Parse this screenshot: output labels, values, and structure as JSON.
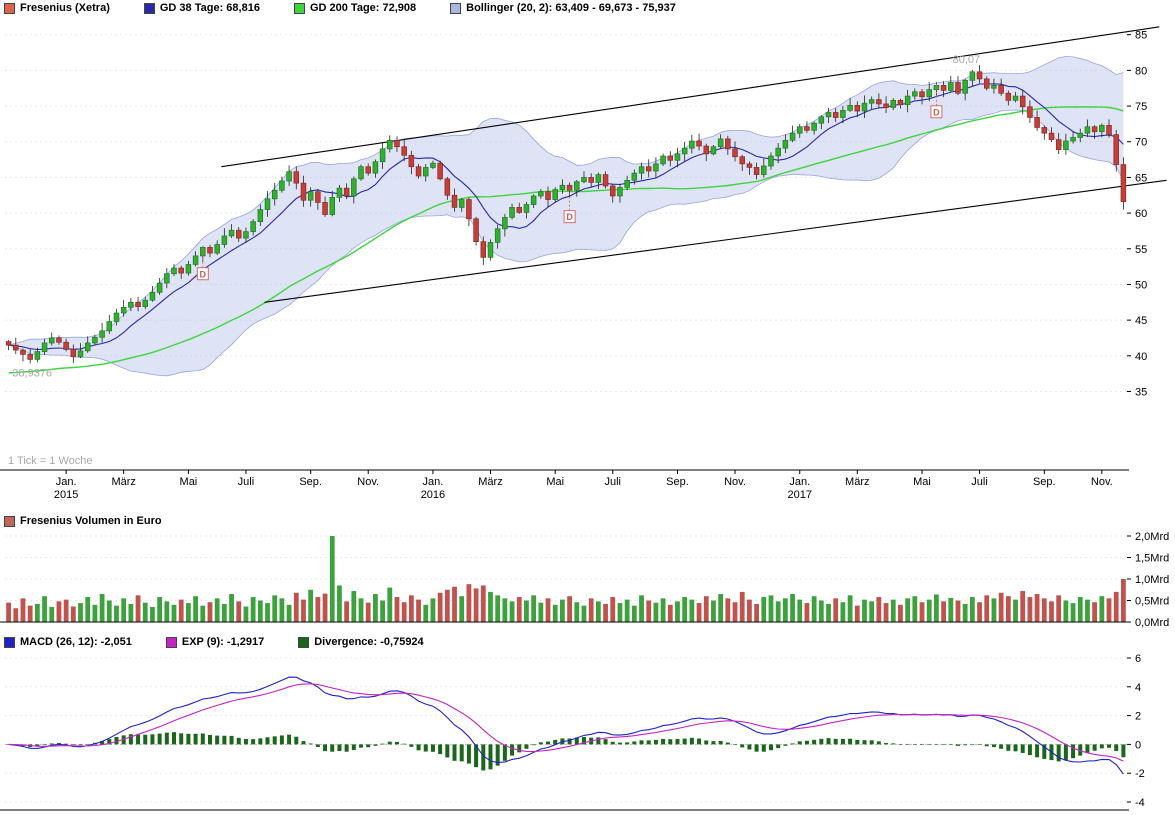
{
  "colors": {
    "up": "#33ae33",
    "up_border": "#1d7a1d",
    "down": "#c2403a",
    "down_border": "#8e2722",
    "gd38": "#2a2aa8",
    "gd200": "#3fd43f",
    "bollinger_fill": "rgba(168,182,228,0.38)",
    "bollinger_edge": "#96a5da",
    "swatch_bollinger": "#a8b6e4",
    "channel": "#000000",
    "volume_up": "#3da23d",
    "volume_down": "#c0534d",
    "macd": "#2121c8",
    "exp": "#c424c4",
    "divergence": "#1a661a",
    "marker": "#cc6059",
    "annotation": "#a8a8a8",
    "swatch_title": "#e2604e",
    "swatch_volume": "#c4655c",
    "axis": "#000000",
    "grid": "#e8e8e8"
  },
  "legend_main": {
    "title": "Fresenius (Xetra)",
    "gd38": "GD 38 Tage: 68,816",
    "gd200": "GD 200 Tage: 72,908",
    "bollinger": "Bollinger (20, 2): 63,409 - 69,673 - 75,937"
  },
  "legend_volume": {
    "label": "Fresenius Volumen in Euro"
  },
  "legend_macd": {
    "macd": "MACD (26, 12): -2,051",
    "exp": "EXP (9): -1,2917",
    "divergence": "Divergence: -0,75924"
  },
  "annotations": {
    "tick_note": "1 Tick = 1 Woche",
    "high_label": "80,07",
    "low_label": "38,9376"
  },
  "chart_data": [
    {
      "type": "candlestick",
      "title": "Fresenius (Xetra)",
      "timeframe_note": "1 Tick = 1 Woche",
      "first_open": 42.0,
      "closes": [
        41.5,
        40.8,
        40.2,
        39.5,
        40.6,
        41.8,
        42.5,
        41.9,
        40.9,
        39.9,
        40.7,
        41.8,
        42.6,
        43.5,
        44.8,
        46.0,
        46.8,
        47.5,
        46.9,
        47.8,
        48.9,
        50.2,
        51.5,
        52.3,
        51.6,
        52.8,
        54.0,
        55.2,
        54.4,
        55.6,
        56.8,
        57.6,
        56.5,
        57.4,
        58.8,
        60.5,
        62.0,
        63.2,
        64.5,
        65.8,
        64.2,
        61.8,
        63.0,
        61.5,
        59.8,
        62.2,
        63.5,
        62.4,
        64.8,
        66.5,
        65.6,
        67.2,
        69.0,
        70.2,
        69.3,
        68.1,
        66.5,
        65.2,
        66.4,
        67.0,
        64.8,
        62.5,
        60.8,
        61.9,
        59.2,
        56.0,
        53.8,
        55.9,
        57.8,
        59.4,
        60.8,
        60.1,
        61.2,
        62.4,
        63.0,
        61.9,
        63.3,
        63.9,
        63.2,
        64.4,
        65.0,
        64.3,
        65.4,
        63.8,
        62.4,
        63.6,
        64.6,
        65.6,
        66.5,
        65.9,
        66.9,
        68.0,
        67.4,
        68.3,
        69.1,
        70.1,
        69.4,
        68.3,
        69.3,
        70.4,
        69.0,
        67.9,
        66.9,
        66.4,
        65.4,
        66.6,
        68.0,
        69.1,
        70.2,
        71.2,
        72.1,
        71.6,
        72.6,
        73.5,
        74.1,
        73.4,
        74.4,
        75.1,
        74.3,
        75.4,
        75.9,
        75.3,
        74.8,
        75.8,
        75.2,
        76.4,
        77.0,
        76.3,
        77.3,
        77.9,
        77.2,
        78.3,
        76.8,
        78.6,
        79.8,
        78.8,
        77.5,
        77.9,
        76.8,
        75.8,
        76.4,
        74.9,
        73.4,
        72.0,
        71.2,
        70.3,
        68.9,
        70.1,
        70.6,
        71.2,
        72.1,
        71.4,
        72.3,
        71.0,
        66.8,
        61.6
      ],
      "peak": {
        "week": 134,
        "value": 80.07
      },
      "low": {
        "week": 3,
        "value": 38.9376
      },
      "gd200_seed": 37.5,
      "overlays": {
        "gd38": {
          "label": "GD 38 Tage",
          "window_weeks": 8,
          "current": "68,816"
        },
        "gd200": {
          "label": "GD 200 Tage",
          "window_weeks": 40,
          "current": "72,908"
        },
        "bollinger": {
          "label": "Bollinger (20, 2)",
          "current": "63,409 - 69,673 - 75,937"
        }
      },
      "channel_lines": [
        {
          "w1": 30,
          "p1": 66.5,
          "w2": 160,
          "p2": 86.1
        },
        {
          "w1": 36,
          "p1": 47.5,
          "w2": 161,
          "p2": 64.6
        }
      ],
      "dividends": [
        {
          "week": 27,
          "price": 51.5,
          "label": "D"
        },
        {
          "week": 78,
          "price": 59.5,
          "label": "D"
        },
        {
          "week": 129,
          "price": 74.2,
          "label": "D"
        }
      ],
      "y_ticks": [
        85,
        80,
        75,
        70,
        65,
        60,
        55,
        50,
        45,
        40,
        35
      ],
      "ylim": [
        24,
        86.5
      ],
      "x_labels": [
        {
          "week": 8,
          "label": "Jan.",
          "year": "2015"
        },
        {
          "week": 16,
          "label": "März"
        },
        {
          "week": 25,
          "label": "Mai"
        },
        {
          "week": 33,
          "label": "Juli"
        },
        {
          "week": 42,
          "label": "Sep."
        },
        {
          "week": 50,
          "label": "Nov."
        },
        {
          "week": 59,
          "label": "Jan.",
          "year": "2016"
        },
        {
          "week": 67,
          "label": "März"
        },
        {
          "week": 76,
          "label": "Mai"
        },
        {
          "week": 84,
          "label": "Juli"
        },
        {
          "week": 93,
          "label": "Sep."
        },
        {
          "week": 101,
          "label": "Nov."
        },
        {
          "week": 110,
          "label": "Jan.",
          "year": "2017"
        },
        {
          "week": 118,
          "label": "März"
        },
        {
          "week": 127,
          "label": "Mai"
        },
        {
          "week": 135,
          "label": "Juli"
        },
        {
          "week": 144,
          "label": "Sep."
        },
        {
          "week": 152,
          "label": "Nov."
        }
      ]
    },
    {
      "type": "bar",
      "title": "Fresenius Volumen in Euro",
      "unit": "Mrd",
      "values": [
        0.45,
        0.32,
        0.55,
        0.38,
        0.42,
        0.6,
        0.35,
        0.48,
        0.52,
        0.36,
        0.44,
        0.58,
        0.4,
        0.65,
        0.5,
        0.38,
        0.55,
        0.42,
        0.62,
        0.45,
        0.35,
        0.58,
        0.48,
        0.4,
        0.52,
        0.44,
        0.6,
        0.38,
        0.46,
        0.55,
        0.42,
        0.65,
        0.48,
        0.36,
        0.58,
        0.5,
        0.44,
        0.62,
        0.55,
        0.4,
        0.68,
        0.52,
        0.75,
        0.58,
        0.66,
        2.0,
        0.85,
        0.48,
        0.72,
        0.55,
        0.45,
        0.65,
        0.5,
        0.8,
        0.58,
        0.46,
        0.62,
        0.52,
        0.4,
        0.55,
        0.68,
        0.75,
        0.82,
        0.6,
        0.88,
        0.78,
        0.85,
        0.7,
        0.62,
        0.55,
        0.48,
        0.58,
        0.5,
        0.62,
        0.45,
        0.55,
        0.4,
        0.52,
        0.6,
        0.46,
        0.38,
        0.55,
        0.48,
        0.42,
        0.58,
        0.44,
        0.52,
        0.38,
        0.62,
        0.5,
        0.45,
        0.55,
        0.4,
        0.48,
        0.58,
        0.52,
        0.44,
        0.6,
        0.5,
        0.65,
        0.55,
        0.46,
        0.7,
        0.52,
        0.42,
        0.58,
        0.62,
        0.48,
        0.55,
        0.65,
        0.52,
        0.44,
        0.6,
        0.5,
        0.42,
        0.55,
        0.46,
        0.62,
        0.38,
        0.52,
        0.48,
        0.58,
        0.44,
        0.52,
        0.4,
        0.55,
        0.6,
        0.46,
        0.52,
        0.64,
        0.48,
        0.56,
        0.5,
        0.42,
        0.58,
        0.46,
        0.62,
        0.55,
        0.68,
        0.6,
        0.52,
        0.72,
        0.58,
        0.65,
        0.55,
        0.48,
        0.62,
        0.5,
        0.44,
        0.58,
        0.52,
        0.46,
        0.6,
        0.55,
        0.7,
        1.0
      ],
      "ticks": [
        {
          "value": 2.0,
          "label": "2,0Mrd"
        },
        {
          "value": 1.5,
          "label": "1,5Mrd"
        },
        {
          "value": 1.0,
          "label": "1,0Mrd"
        },
        {
          "value": 0.5,
          "label": "0,5Mrd"
        },
        {
          "value": 0.0,
          "label": "0,0Mrd"
        }
      ]
    },
    {
      "type": "macd",
      "fast": 12,
      "slow": 26,
      "signal": 9,
      "current": {
        "macd": "-2,051",
        "exp": "-1,2917",
        "divergence": "-0,75924"
      },
      "y_ticks": [
        {
          "value": 6,
          "label": "6"
        },
        {
          "value": 4,
          "label": "4"
        },
        {
          "value": 2,
          "label": "2"
        },
        {
          "value": 0,
          "label": "0"
        },
        {
          "value": -2,
          "label": "-2"
        },
        {
          "value": -4,
          "label": "-4"
        }
      ],
      "ylim": [
        -4,
        6
      ]
    }
  ]
}
